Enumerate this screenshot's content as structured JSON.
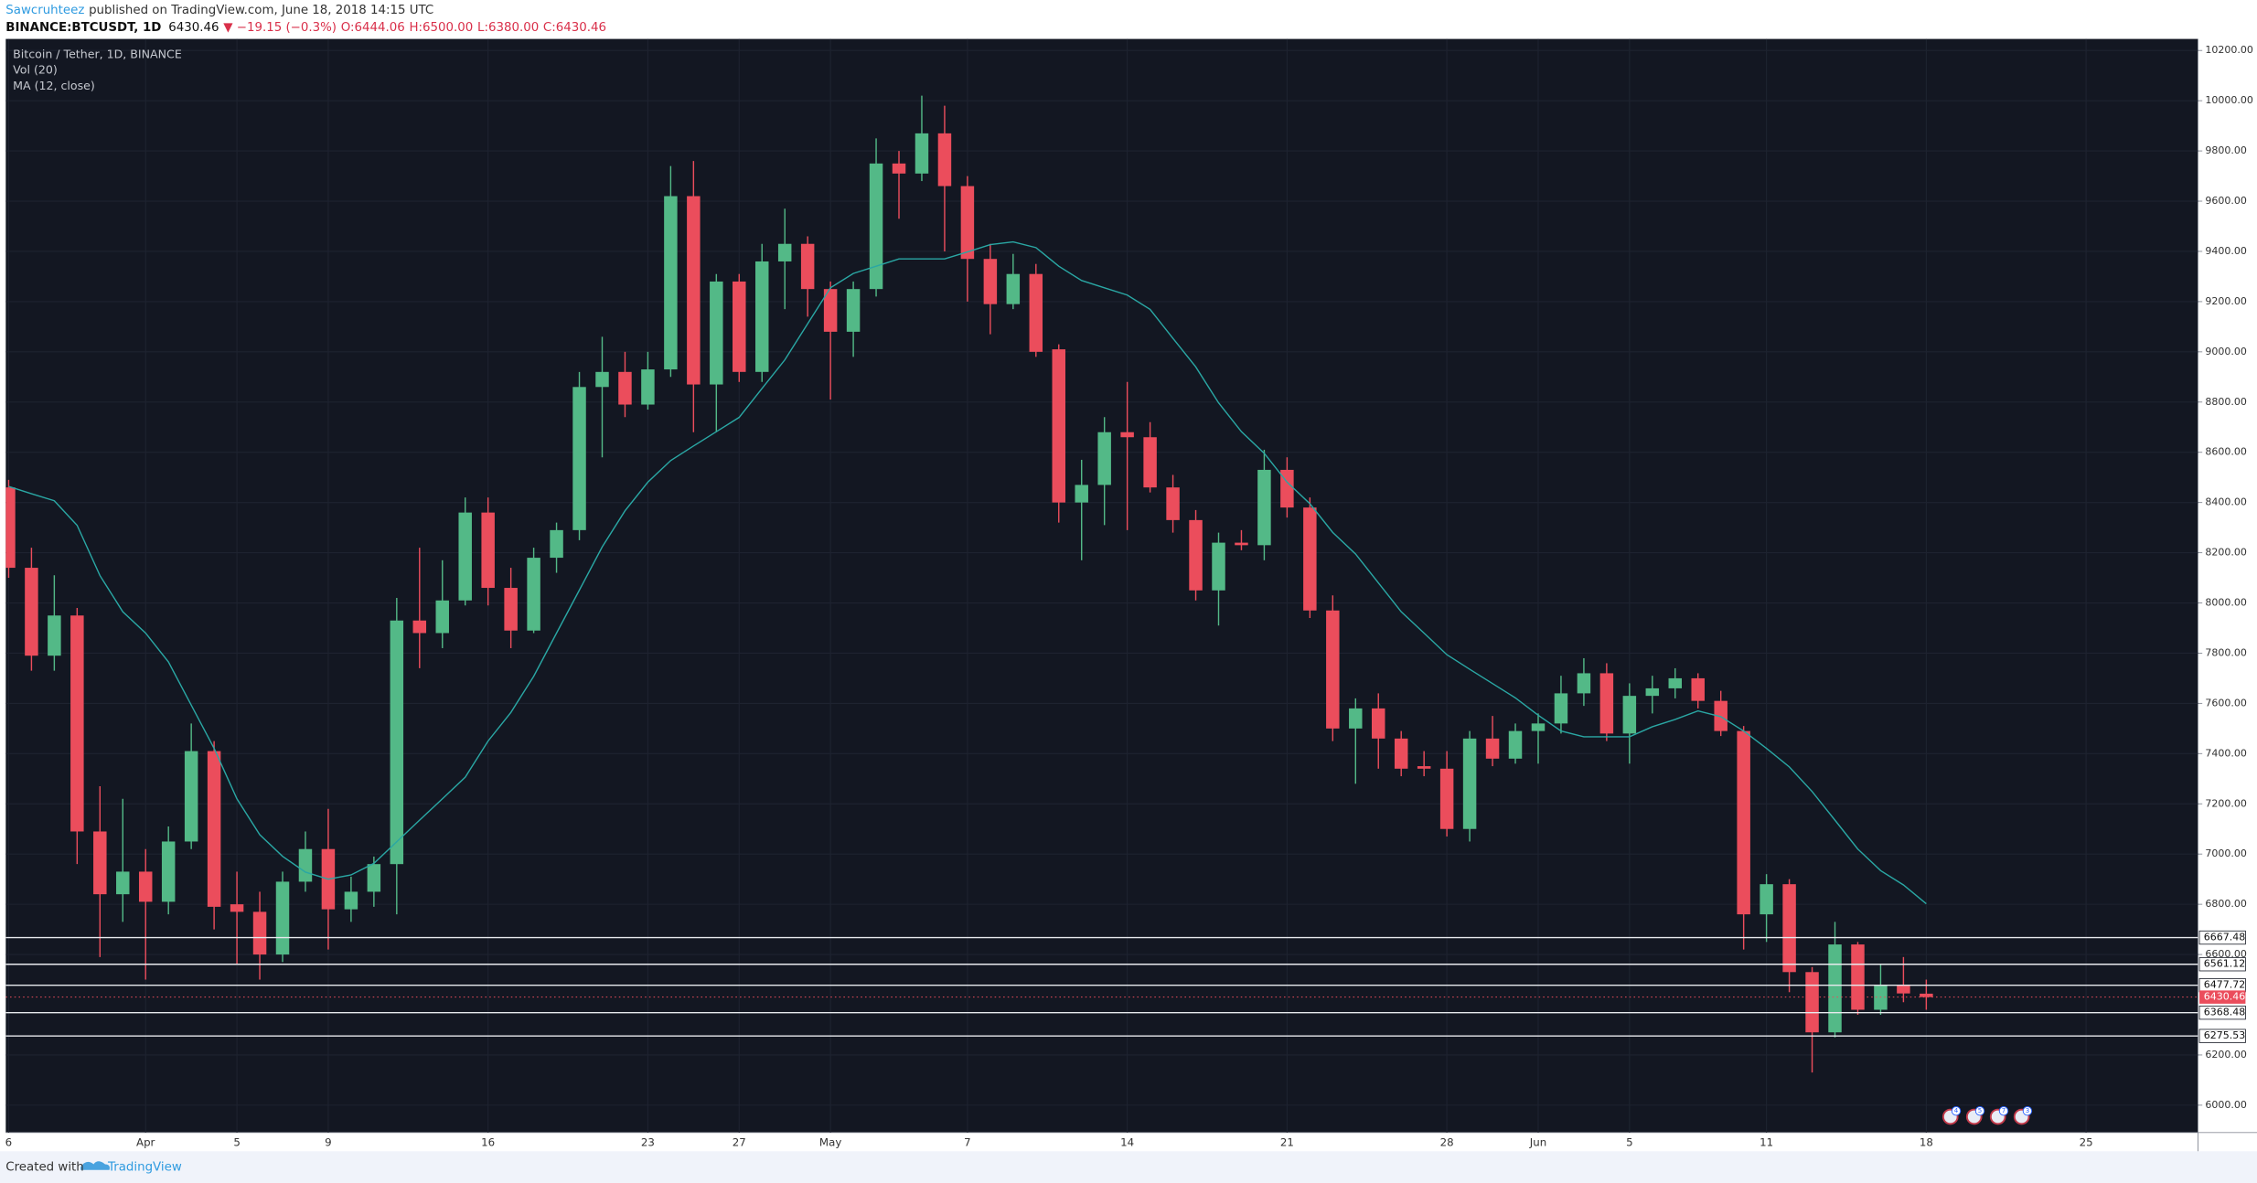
{
  "chart_data": {
    "type": "candlestick",
    "title": "Bitcoin / Tether, 1D, BINANCE",
    "indicators": [
      "Vol (20)",
      "MA (12, close)"
    ],
    "header": {
      "author": "Sawcruhteez",
      "published": "published on TradingView.com, June 18, 2018 14:15 UTC",
      "symbol": "BINANCE:BTCUSDT, 1D",
      "last": "6430.46",
      "change": "▼ −19.15 (−0.3%)",
      "ohlc": [
        "O:6444.06",
        "H:6500.00",
        "L:6380.00",
        "C:6430.46"
      ]
    },
    "footer": {
      "created": "Created with",
      "brand": "TradingView"
    },
    "categories": [
      "6",
      null,
      null,
      null,
      null,
      null,
      "Apr",
      null,
      null,
      null,
      "5",
      null,
      null,
      null,
      "9",
      null,
      null,
      null,
      null,
      null,
      null,
      "16",
      null,
      null,
      null,
      null,
      null,
      null,
      "23",
      null,
      null,
      null,
      "27",
      null,
      null,
      null,
      "May",
      null,
      null,
      null,
      null,
      null,
      "7",
      null,
      null,
      null,
      null,
      null,
      null,
      "14",
      null,
      null,
      null,
      null,
      null,
      null,
      "21",
      null,
      null,
      null,
      null,
      null,
      null,
      "28",
      null,
      null,
      null,
      "Jun",
      null,
      null,
      null,
      "5",
      null,
      null,
      null,
      null,
      null,
      "11",
      null,
      null,
      null,
      null,
      null,
      null,
      "18",
      null,
      null,
      null,
      null,
      null,
      null,
      "25"
    ],
    "open": [
      8460,
      8140,
      7790,
      7950,
      7090,
      6840,
      6930,
      6810,
      7050,
      7410,
      6800,
      6770,
      6600,
      6890,
      7020,
      6780,
      6850,
      6960,
      7930,
      7880,
      8010,
      8360,
      8060,
      7890,
      8180,
      8290,
      8860,
      8920,
      8790,
      8930,
      9620,
      8870,
      9280,
      8920,
      9360,
      9430,
      9250,
      9080,
      9250,
      9750,
      9710,
      9870,
      9660,
      9370,
      9190,
      9310,
      9010,
      8400,
      8470,
      8680,
      8660,
      8460,
      8330,
      8050,
      8240,
      8230,
      8530,
      8380,
      7970,
      7500,
      7580,
      7460,
      7350,
      7340,
      7100,
      7460,
      7380,
      7490,
      7520,
      7640,
      7720,
      7480,
      7630,
      7660,
      7700,
      7610,
      7490,
      6760,
      6880,
      6530,
      6290,
      6640,
      6380,
      6480,
      6444.06,
      null,
      null,
      null,
      null,
      null,
      null,
      null
    ],
    "high": [
      8490,
      8220,
      8110,
      7980,
      7270,
      7220,
      7020,
      7110,
      7520,
      7450,
      6930,
      6850,
      6930,
      7090,
      7180,
      6910,
      6990,
      8020,
      8220,
      8170,
      8420,
      8420,
      8140,
      8220,
      8320,
      8920,
      9060,
      9000,
      9000,
      9740,
      9760,
      9310,
      9310,
      9430,
      9570,
      9460,
      9280,
      9280,
      9850,
      9800,
      10020,
      9980,
      9700,
      9430,
      9390,
      9350,
      9030,
      8570,
      8740,
      8880,
      8720,
      8510,
      8370,
      8280,
      8290,
      8610,
      8580,
      8420,
      8030,
      7620,
      7640,
      7490,
      7410,
      7410,
      7490,
      7550,
      7520,
      7560,
      7710,
      7780,
      7760,
      7680,
      7710,
      7740,
      7720,
      7650,
      7510,
      6920,
      6900,
      6550,
      6730,
      6650,
      6560,
      6590,
      6500,
      null,
      null,
      null,
      null,
      null,
      null,
      null
    ],
    "low": [
      8100,
      7730,
      7730,
      6960,
      6590,
      6730,
      6500,
      6760,
      7020,
      6700,
      6560,
      6500,
      6570,
      6850,
      6620,
      6730,
      6790,
      6760,
      7740,
      7820,
      7990,
      7990,
      7820,
      7880,
      8120,
      8250,
      8580,
      8740,
      8770,
      8900,
      8680,
      8680,
      8880,
      8880,
      9170,
      9140,
      8810,
      8980,
      9220,
      9530,
      9680,
      9400,
      9200,
      9070,
      9170,
      8980,
      8320,
      8170,
      8310,
      8290,
      8440,
      8280,
      8010,
      7910,
      8210,
      8170,
      8340,
      7940,
      7450,
      7280,
      7340,
      7310,
      7310,
      7070,
      7050,
      7350,
      7360,
      7360,
      7480,
      7590,
      7450,
      7360,
      7560,
      7620,
      7580,
      7470,
      6620,
      6650,
      6450,
      6130,
      6270,
      6360,
      6360,
      6410,
      6380,
      null,
      null,
      null,
      null,
      null,
      null,
      null
    ],
    "close": [
      8140,
      7790,
      7950,
      7090,
      6840,
      6930,
      6810,
      7050,
      7410,
      6790,
      6770,
      6600,
      6890,
      7020,
      6780,
      6850,
      6960,
      7930,
      7880,
      8010,
      8360,
      8060,
      7890,
      8180,
      8290,
      8860,
      8920,
      8790,
      8930,
      9620,
      8870,
      9280,
      8920,
      9360,
      9430,
      9250,
      9080,
      9250,
      9750,
      9710,
      9870,
      9660,
      9370,
      9190,
      9310,
      9000,
      8400,
      8470,
      8680,
      8660,
      8460,
      8330,
      8050,
      8240,
      8230,
      8530,
      8380,
      7970,
      7500,
      7580,
      7460,
      7340,
      7340,
      7100,
      7460,
      7380,
      7490,
      7520,
      7640,
      7720,
      7480,
      7630,
      7660,
      7700,
      7610,
      7490,
      6760,
      6880,
      6530,
      6290,
      6640,
      6380,
      6480,
      6445,
      6430.46,
      null,
      null,
      null,
      null,
      null,
      null,
      null
    ],
    "ma": {
      "name": "MA (12, close)",
      "color": "#2aa7a4",
      "values": [
        8464,
        8435,
        8407,
        8309,
        8109,
        7965,
        7880,
        7765,
        7593,
        7421,
        7220,
        7077,
        6991,
        6928,
        6900,
        6917,
        6963,
        7049,
        7135,
        7220,
        7306,
        7450,
        7564,
        7708,
        7880,
        8051,
        8223,
        8367,
        8481,
        8567,
        8625,
        8682,
        8739,
        8854,
        8968,
        9112,
        9255,
        9312,
        9341,
        9370,
        9370,
        9370,
        9398,
        9427,
        9438,
        9415,
        9341,
        9284,
        9255,
        9226,
        9169,
        9054,
        8940,
        8797,
        8682,
        8596,
        8481,
        8395,
        8281,
        8195,
        8080,
        7965,
        7880,
        7794,
        7736,
        7679,
        7622,
        7553,
        7490,
        7467,
        7467,
        7467,
        7507,
        7536,
        7570,
        7547,
        7490,
        7421,
        7347,
        7249,
        7135,
        7020,
        6934,
        6877,
        6802,
        null,
        null,
        null,
        null,
        null,
        null,
        null
      ]
    },
    "up_color": "#53b987",
    "down_color": "#eb4d5c",
    "ylim": [
      5891,
      10246
    ],
    "yticks": [
      {
        "value": 6000,
        "label": "6000.00"
      },
      {
        "value": 6200,
        "label": "6200.00"
      },
      {
        "value": 6600,
        "label": "6600.00"
      },
      {
        "value": 6800,
        "label": "6800.00"
      },
      {
        "value": 7000,
        "label": "7000.00"
      },
      {
        "value": 7200,
        "label": "7200.00"
      },
      {
        "value": 7400,
        "label": "7400.00"
      },
      {
        "value": 7600,
        "label": "7600.00"
      },
      {
        "value": 7800,
        "label": "7800.00"
      },
      {
        "value": 8000,
        "label": "8000.00"
      },
      {
        "value": 8200,
        "label": "8200.00"
      },
      {
        "value": 8400,
        "label": "8400.00"
      },
      {
        "value": 8600,
        "label": "8600.00"
      },
      {
        "value": 8800,
        "label": "8800.00"
      },
      {
        "value": 9000,
        "label": "9000.00"
      },
      {
        "value": 9200,
        "label": "9200.00"
      },
      {
        "value": 9400,
        "label": "9400.00"
      },
      {
        "value": 9600,
        "label": "9600.00"
      },
      {
        "value": 9800,
        "label": "9800.00"
      },
      {
        "value": 10000,
        "label": "10000.00"
      },
      {
        "value": 10200,
        "label": "10200.00"
      }
    ],
    "levels": [
      6667.48,
      6561.12,
      6477.72,
      6368.48,
      6275.53
    ],
    "last_price": 6430.46,
    "event_counts": [
      4,
      5,
      7,
      3
    ],
    "grid": true
  }
}
